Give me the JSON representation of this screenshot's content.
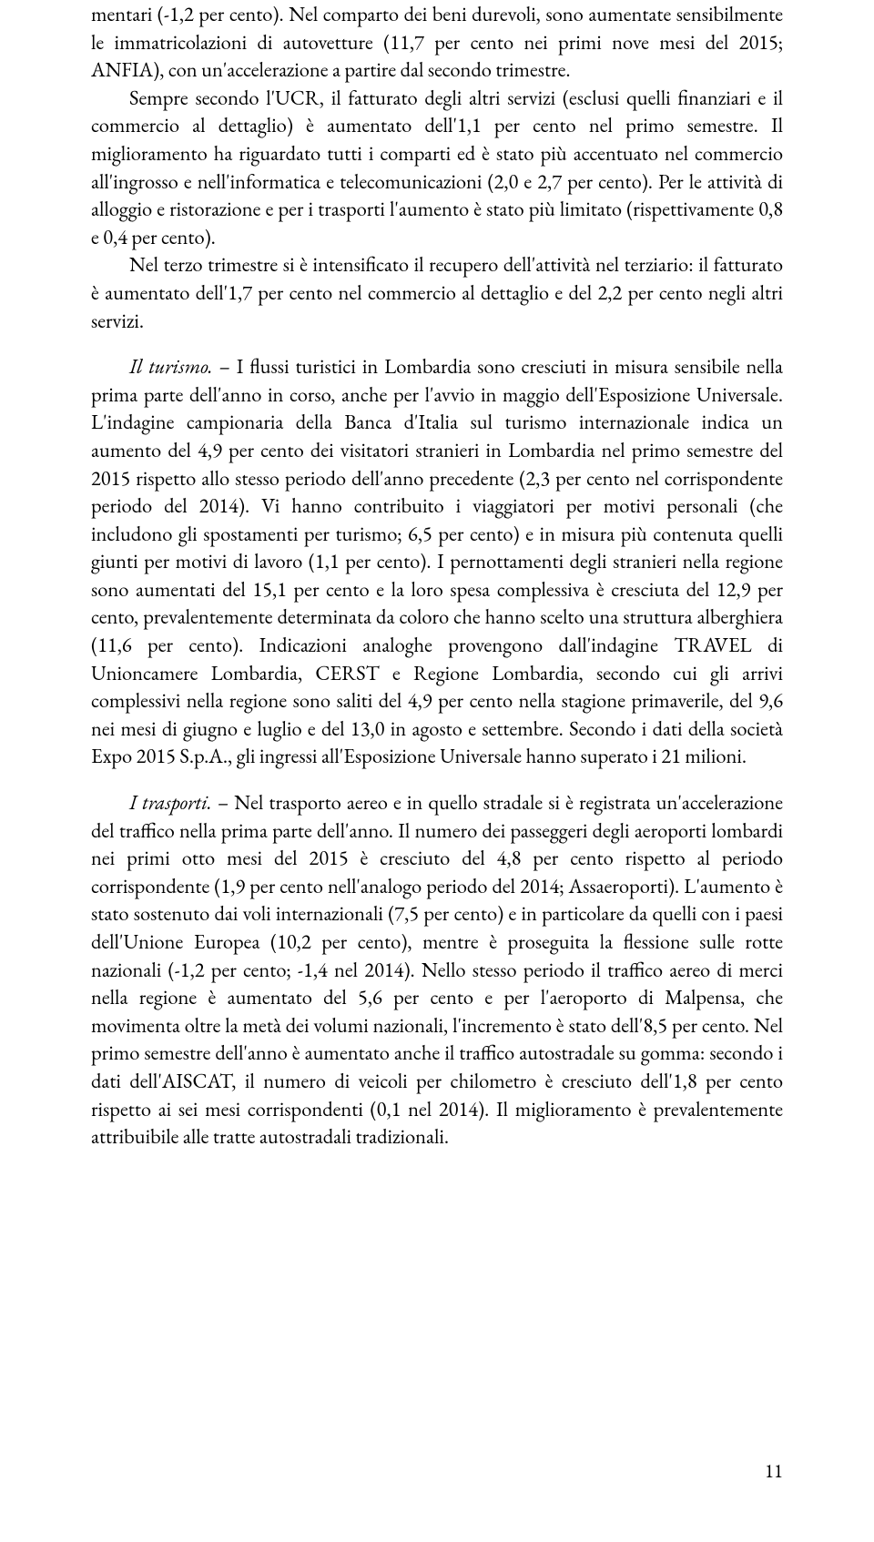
{
  "paragraphs": {
    "p1": "mentari (-1,2 per cento). Nel comparto dei beni durevoli, sono aumentate sensibilmente le immatricolazioni di autovetture (11,7 per cento nei primi nove mesi del 2015; ANFIA), con un'accelerazione a partire dal secondo trimestre.",
    "p2": "Sempre secondo l'UCR, il fatturato degli altri servizi (esclusi quelli finanziari e il commercio al dettaglio) è aumentato dell'1,1 per cento nel primo semestre. Il miglioramento ha riguardato tutti i comparti ed è stato più accentuato nel commercio all'ingrosso e nell'informatica e telecomunicazioni (2,0 e 2,7 per cento). Per le attività di alloggio e ristorazione e per i trasporti l'aumento è stato più limitato (rispettivamente 0,8 e 0,4 per cento).",
    "p3": "Nel terzo trimestre si è intensificato il recupero dell'attività nel terziario: il fatturato è aumentato dell'1,7 per cento nel commercio al dettaglio e del 2,2 per cento negli altri servizi.",
    "p4_prefix": "Il turismo.",
    "p4": " – I flussi turistici in Lombardia sono cresciuti in misura sensibile nella prima parte dell'anno in corso, anche per l'avvio in maggio dell'Esposizione Universale. L'indagine campionaria della Banca d'Italia sul turismo internazionale indica un aumento del 4,9 per cento dei visitatori stranieri in Lombardia nel primo semestre del 2015 rispetto allo stesso periodo dell'anno precedente (2,3 per cento nel corrispondente periodo del 2014). Vi hanno contribuito i viaggiatori per motivi personali (che includono gli spostamenti per turismo; 6,5 per cento) e in misura più contenuta quelli giunti per motivi di lavoro (1,1 per cento). I pernottamenti degli stranieri nella regione sono aumentati del 15,1 per cento e la loro spesa complessiva è cresciuta del 12,9 per cento, prevalentemente determinata da coloro che hanno scelto una struttura alberghiera (11,6 per cento). Indicazioni analoghe provengono dall'indagine TRAVEL di Unioncamere Lombardia, CERST e Regione Lombardia, secondo cui gli arrivi complessivi nella regione sono saliti del 4,9 per cento nella stagione primaverile, del 9,6 nei mesi di giugno e luglio e del 13,0 in agosto e settembre. Secondo i dati della società Expo 2015 S.p.A., gli ingressi all'Esposizione Universale hanno superato i 21 milioni.",
    "p5_prefix": "I trasporti.",
    "p5": " – Nel trasporto aereo e in quello stradale si è registrata un'accelerazione del traffico nella prima parte dell'anno. Il numero dei passeggeri degli aeroporti lombardi nei primi otto mesi del 2015 è cresciuto del 4,8 per cento rispetto al periodo corrispondente (1,9 per cento nell'analogo periodo del 2014; Assaeroporti). L'aumento è stato sostenuto dai voli internazionali (7,5 per cento) e in particolare da quelli con i paesi dell'Unione Europea (10,2 per cento), mentre è proseguita la flessione sulle rotte nazionali (-1,2 per cento; -1,4 nel 2014). Nello stesso periodo il traffico aereo di merci nella regione è aumentato del 5,6 per cento e per l'aeroporto di Malpensa, che movimenta oltre la metà dei volumi nazionali, l'incremento è stato dell'8,5 per cento. Nel primo semestre dell'anno è aumentato anche il traffico autostradale su gomma: secondo i dati dell'AISCAT, il numero di veicoli per chilometro è cresciuto dell'1,8 per cento rispetto ai sei mesi corrispondenti (0,1 nel 2014). Il miglioramento è prevalentemente attribuibile alle tratte autostradali tradizionali."
  },
  "page_number": "11"
}
